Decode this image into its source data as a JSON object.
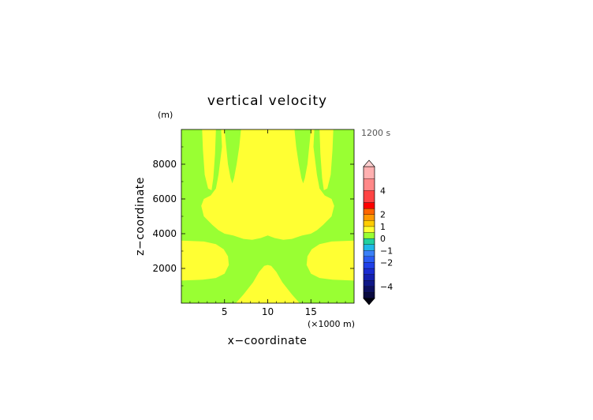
{
  "chart_data": {
    "type": "heatmap",
    "title": "vertical velocity",
    "xlabel": "x−coordinate",
    "ylabel": "z−coordinate",
    "x_unit": "(×1000 m)",
    "y_unit": "(m)",
    "time_label": "1200 s",
    "xlim": [
      0,
      20
    ],
    "ylim": [
      0,
      10000
    ],
    "x_ticks": [
      5,
      10,
      15
    ],
    "y_ticks": [
      2000,
      4000,
      6000,
      8000
    ],
    "x_tick_labels": [
      "5",
      "10",
      "15"
    ],
    "y_tick_labels": [
      "2000",
      "4000",
      "6000",
      "8000"
    ],
    "colorbar": {
      "levels_bottom_to_top": [
        {
          "range": [
            -5.0,
            -4.5
          ],
          "color": "#0a0a40"
        },
        {
          "range": [
            -4.5,
            -4.0
          ],
          "color": "#0d1060"
        },
        {
          "range": [
            -4.0,
            -3.5
          ],
          "color": "#101888"
        },
        {
          "range": [
            -3.5,
            -3.0
          ],
          "color": "#1420b0"
        },
        {
          "range": [
            -3.0,
            -2.5
          ],
          "color": "#1a2cd0"
        },
        {
          "range": [
            -2.5,
            -2.0
          ],
          "color": "#2040e8"
        },
        {
          "range": [
            -2.0,
            -1.5
          ],
          "color": "#2a5cf4"
        },
        {
          "range": [
            -1.5,
            -1.0
          ],
          "color": "#3a80f8"
        },
        {
          "range": [
            -1.0,
            -0.5
          ],
          "color": "#20b8e8"
        },
        {
          "range": [
            -0.5,
            0.0
          ],
          "color": "#22d0a0"
        },
        {
          "range": [
            0.0,
            0.5
          ],
          "color": "#99ff33"
        },
        {
          "range": [
            0.5,
            1.0
          ],
          "color": "#ffff33"
        },
        {
          "range": [
            1.0,
            1.5
          ],
          "color": "#ffcc00"
        },
        {
          "range": [
            1.5,
            2.0
          ],
          "color": "#ff9900"
        },
        {
          "range": [
            2.0,
            2.5
          ],
          "color": "#ff6600"
        },
        {
          "range": [
            2.5,
            3.0
          ],
          "color": "#ff0000"
        },
        {
          "range": [
            3.0,
            4.0
          ],
          "color": "#ff4444"
        },
        {
          "range": [
            4.0,
            5.0
          ],
          "color": "#ff8888"
        },
        {
          "range": [
            5.0,
            6.0
          ],
          "color": "#ffb0b0"
        }
      ],
      "tick_values": [
        4,
        2,
        1,
        0,
        -1,
        -2,
        -4
      ],
      "tick_labels": [
        "4",
        "2",
        "1",
        "0",
        "−1",
        "−2",
        "−4"
      ]
    },
    "field_colors": {
      "background_0_to_0.5": "#99ff33",
      "positive_0.5_to_1": "#ffff33"
    },
    "regions_positive": [
      {
        "name": "central updraft column",
        "x_range": [
          4.5,
          15.5
        ],
        "z_range": [
          3700,
          10000
        ]
      },
      {
        "name": "left lower lobe",
        "x_range": [
          0,
          5.5
        ],
        "z_range": [
          1300,
          3600
        ]
      },
      {
        "name": "right lower lobe",
        "x_range": [
          14.5,
          20
        ],
        "z_range": [
          1300,
          3600
        ]
      },
      {
        "name": "central near-surface bump",
        "x_range": [
          6.3,
          13.7
        ],
        "z_range": [
          0,
          2200
        ]
      },
      {
        "name": "left upper edge strip",
        "x_range": [
          2.4,
          4.0
        ],
        "z_range": [
          6000,
          10000
        ]
      },
      {
        "name": "right upper edge strip",
        "x_range": [
          16.0,
          17.6
        ],
        "z_range": [
          6000,
          10000
        ]
      }
    ]
  }
}
